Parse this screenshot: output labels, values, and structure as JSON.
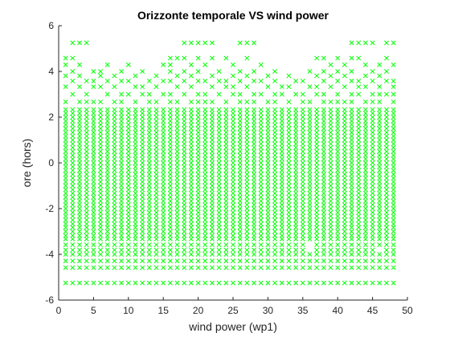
{
  "chart_data": {
    "type": "scatter",
    "title": "Orizzonte temporale VS wind power",
    "xlabel": "wind power (wp1)",
    "ylabel": "ore (hors)",
    "xlim": [
      0,
      50
    ],
    "ylim": [
      -6,
      6
    ],
    "xticks": [
      0,
      5,
      10,
      15,
      20,
      25,
      30,
      35,
      40,
      45,
      50
    ],
    "yticks": [
      -6,
      -4,
      -2,
      0,
      2,
      4,
      6
    ],
    "grid": false,
    "marker": "x",
    "color": "#00ff00",
    "series": [
      {
        "x_range": [
          1,
          48
        ],
        "x_step": 1,
        "y_levels": [
          -5.25,
          -4.58,
          -4.29,
          -4.0,
          -3.81,
          -3.58,
          -3.33,
          -3.18,
          -3.0,
          -2.82,
          -2.67,
          -2.5,
          -2.33,
          -2.17,
          -2.0,
          -1.83,
          -1.67,
          -1.5,
          -1.33,
          -1.17,
          -1.0,
          -0.83,
          -0.67,
          -0.5,
          -0.33,
          -0.17,
          0.0,
          0.17,
          0.33,
          0.5,
          0.67,
          0.83,
          1.0,
          1.17,
          1.33,
          1.5,
          1.67,
          1.83,
          2.0,
          2.17,
          2.33
        ],
        "upper_points": [
          [
            2,
            5.25
          ],
          [
            3,
            5.25
          ],
          [
            4,
            5.25
          ],
          [
            18,
            5.25
          ],
          [
            19,
            5.25
          ],
          [
            20,
            5.25
          ],
          [
            21,
            5.25
          ],
          [
            22,
            5.25
          ],
          [
            26,
            5.25
          ],
          [
            27,
            5.25
          ],
          [
            28,
            5.25
          ],
          [
            42,
            5.25
          ],
          [
            43,
            5.25
          ],
          [
            44,
            5.25
          ],
          [
            45,
            5.25
          ],
          [
            47,
            5.25
          ],
          [
            48,
            5.25
          ],
          [
            1,
            4.58
          ],
          [
            2,
            4.58
          ],
          [
            16,
            4.58
          ],
          [
            17,
            4.58
          ],
          [
            18,
            4.58
          ],
          [
            20,
            4.58
          ],
          [
            22,
            4.58
          ],
          [
            24,
            4.58
          ],
          [
            27,
            4.58
          ],
          [
            37,
            4.58
          ],
          [
            38,
            4.58
          ],
          [
            40,
            4.58
          ],
          [
            42,
            4.58
          ],
          [
            43,
            4.58
          ],
          [
            47,
            4.58
          ],
          [
            1,
            4.29
          ],
          [
            3,
            4.29
          ],
          [
            7,
            4.29
          ],
          [
            10,
            4.29
          ],
          [
            15,
            4.29
          ],
          [
            16,
            4.29
          ],
          [
            19,
            4.29
          ],
          [
            21,
            4.29
          ],
          [
            25,
            4.29
          ],
          [
            29,
            4.29
          ],
          [
            39,
            4.29
          ],
          [
            41,
            4.29
          ],
          [
            44,
            4.29
          ],
          [
            46,
            4.29
          ],
          [
            48,
            4.29
          ],
          [
            2,
            4.0
          ],
          [
            5,
            4.0
          ],
          [
            6,
            4.0
          ],
          [
            9,
            4.0
          ],
          [
            12,
            4.0
          ],
          [
            16,
            4.0
          ],
          [
            18,
            4.0
          ],
          [
            20,
            4.0
          ],
          [
            23,
            4.0
          ],
          [
            26,
            4.0
          ],
          [
            28,
            4.0
          ],
          [
            31,
            4.0
          ],
          [
            36,
            4.0
          ],
          [
            38,
            4.0
          ],
          [
            40,
            4.0
          ],
          [
            42,
            4.0
          ],
          [
            45,
            4.0
          ],
          [
            47,
            4.0
          ],
          [
            1,
            3.81
          ],
          [
            3,
            3.81
          ],
          [
            6,
            3.81
          ],
          [
            8,
            3.81
          ],
          [
            11,
            3.81
          ],
          [
            14,
            3.81
          ],
          [
            17,
            3.81
          ],
          [
            19,
            3.81
          ],
          [
            22,
            3.81
          ],
          [
            25,
            3.81
          ],
          [
            27,
            3.81
          ],
          [
            30,
            3.81
          ],
          [
            33,
            3.81
          ],
          [
            37,
            3.81
          ],
          [
            39,
            3.81
          ],
          [
            41,
            3.81
          ],
          [
            44,
            3.81
          ],
          [
            46,
            3.81
          ],
          [
            2,
            3.58
          ],
          [
            4,
            3.58
          ],
          [
            5,
            3.58
          ],
          [
            7,
            3.58
          ],
          [
            9,
            3.58
          ],
          [
            10,
            3.58
          ],
          [
            13,
            3.58
          ],
          [
            15,
            3.58
          ],
          [
            16,
            3.58
          ],
          [
            18,
            3.58
          ],
          [
            20,
            3.58
          ],
          [
            21,
            3.58
          ],
          [
            23,
            3.58
          ],
          [
            24,
            3.58
          ],
          [
            26,
            3.58
          ],
          [
            28,
            3.58
          ],
          [
            29,
            3.58
          ],
          [
            31,
            3.58
          ],
          [
            34,
            3.58
          ],
          [
            35,
            3.58
          ],
          [
            38,
            3.58
          ],
          [
            40,
            3.58
          ],
          [
            42,
            3.58
          ],
          [
            43,
            3.58
          ],
          [
            45,
            3.58
          ],
          [
            47,
            3.58
          ],
          [
            48,
            3.58
          ],
          [
            1,
            3.33
          ],
          [
            3,
            3.33
          ],
          [
            5,
            3.33
          ],
          [
            6,
            3.33
          ],
          [
            8,
            3.33
          ],
          [
            11,
            3.33
          ],
          [
            12,
            3.33
          ],
          [
            14,
            3.33
          ],
          [
            17,
            3.33
          ],
          [
            19,
            3.33
          ],
          [
            22,
            3.33
          ],
          [
            24,
            3.33
          ],
          [
            25,
            3.33
          ],
          [
            27,
            3.33
          ],
          [
            30,
            3.33
          ],
          [
            32,
            3.33
          ],
          [
            33,
            3.33
          ],
          [
            36,
            3.33
          ],
          [
            37,
            3.33
          ],
          [
            39,
            3.33
          ],
          [
            41,
            3.33
          ],
          [
            43,
            3.33
          ],
          [
            44,
            3.33
          ],
          [
            46,
            3.33
          ],
          [
            48,
            3.33
          ],
          [
            2,
            3.0
          ],
          [
            4,
            3.0
          ],
          [
            7,
            3.0
          ],
          [
            9,
            3.0
          ],
          [
            10,
            3.0
          ],
          [
            12,
            3.0
          ],
          [
            13,
            3.0
          ],
          [
            15,
            3.0
          ],
          [
            16,
            3.0
          ],
          [
            18,
            3.0
          ],
          [
            20,
            3.0
          ],
          [
            21,
            3.0
          ],
          [
            23,
            3.0
          ],
          [
            25,
            3.0
          ],
          [
            26,
            3.0
          ],
          [
            28,
            3.0
          ],
          [
            29,
            3.0
          ],
          [
            31,
            3.0
          ],
          [
            32,
            3.0
          ],
          [
            34,
            3.0
          ],
          [
            35,
            3.0
          ],
          [
            37,
            3.0
          ],
          [
            38,
            3.0
          ],
          [
            40,
            3.0
          ],
          [
            42,
            3.0
          ],
          [
            43,
            3.0
          ],
          [
            45,
            3.0
          ],
          [
            46,
            3.0
          ],
          [
            47,
            3.0
          ],
          [
            48,
            3.0
          ],
          [
            1,
            2.67
          ],
          [
            3,
            2.67
          ],
          [
            4,
            2.67
          ],
          [
            5,
            2.67
          ],
          [
            6,
            2.67
          ],
          [
            8,
            2.67
          ],
          [
            9,
            2.67
          ],
          [
            11,
            2.67
          ],
          [
            13,
            2.67
          ],
          [
            14,
            2.67
          ],
          [
            16,
            2.67
          ],
          [
            17,
            2.67
          ],
          [
            19,
            2.67
          ],
          [
            20,
            2.67
          ],
          [
            21,
            2.67
          ],
          [
            22,
            2.67
          ],
          [
            24,
            2.67
          ],
          [
            26,
            2.67
          ],
          [
            27,
            2.67
          ],
          [
            28,
            2.67
          ],
          [
            30,
            2.67
          ],
          [
            31,
            2.67
          ],
          [
            33,
            2.67
          ],
          [
            35,
            2.67
          ],
          [
            36,
            2.67
          ],
          [
            38,
            2.67
          ],
          [
            39,
            2.67
          ],
          [
            40,
            2.67
          ],
          [
            41,
            2.67
          ],
          [
            42,
            2.67
          ],
          [
            44,
            2.67
          ],
          [
            45,
            2.67
          ],
          [
            46,
            2.67
          ],
          [
            48,
            2.67
          ]
        ],
        "lower_gaps": [
          [
            36,
            -3.81
          ],
          [
            46,
            -3.81
          ],
          [
            36,
            -3.58
          ]
        ]
      }
    ]
  }
}
